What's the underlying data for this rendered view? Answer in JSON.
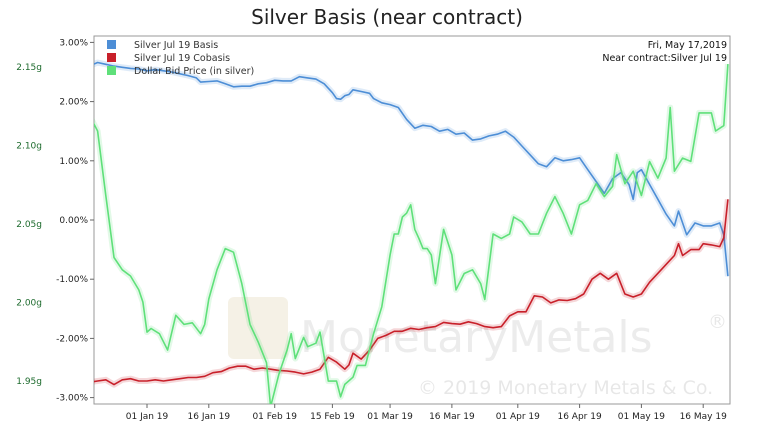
{
  "chart_data": {
    "type": "line",
    "title": "Silver Basis (near contract)",
    "annotation_date": "Fri, May 17,2019",
    "annotation_contract": "Near contract:Silver Jul 19",
    "watermark": "MonetaryMetals",
    "watermark_reg": "®",
    "copyright": "© 2019 Monetary Metals & Co.",
    "legend_position": "top-left",
    "grid": false,
    "x_ticks": [
      "01 Jan 19",
      "16 Jan 19",
      "01 Feb 19",
      "15 Feb 19",
      "01 Mar 19",
      "16 Mar 19",
      "01 Apr 19",
      "16 Apr 19",
      "01 May 19",
      "16 May 19"
    ],
    "y_left": {
      "ticks": [
        "3.00%",
        "2.00%",
        "1.00%",
        "0.00%",
        "-1.00%",
        "-2.00%",
        "-3.00%"
      ],
      "range": [
        -3.0,
        3.0
      ]
    },
    "y_right": {
      "ticks": [
        "2.15g",
        "2.10g",
        "2.05g",
        "2.00g",
        "1.95g"
      ],
      "range": [
        1.9354,
        2.1698
      ]
    },
    "series": [
      {
        "name": "Silver Jul 19 Basis",
        "color": "#4d8ed6",
        "axis": "left",
        "points": [
          [
            -18,
            2.62
          ],
          [
            -17,
            2.55
          ],
          [
            -16,
            2.48
          ],
          [
            -14,
            2.6
          ],
          [
            -12,
            2.66
          ],
          [
            -10,
            2.63
          ],
          [
            -8,
            2.6
          ],
          [
            -6,
            2.58
          ],
          [
            -4,
            2.56
          ],
          [
            -2,
            2.55
          ],
          [
            0,
            2.52
          ],
          [
            2,
            2.54
          ],
          [
            4,
            2.52
          ],
          [
            6,
            2.5
          ],
          [
            8,
            2.47
          ],
          [
            10,
            2.44
          ],
          [
            12,
            2.4
          ],
          [
            13,
            2.33
          ],
          [
            15,
            2.34
          ],
          [
            17,
            2.35
          ],
          [
            19,
            2.3
          ],
          [
            21,
            2.25
          ],
          [
            23,
            2.26
          ],
          [
            25,
            2.26
          ],
          [
            27,
            2.3
          ],
          [
            29,
            2.32
          ],
          [
            31,
            2.36
          ],
          [
            33,
            2.35
          ],
          [
            35,
            2.35
          ],
          [
            37,
            2.42
          ],
          [
            39,
            2.4
          ],
          [
            41,
            2.38
          ],
          [
            43,
            2.3
          ],
          [
            45,
            2.15
          ],
          [
            46,
            2.05
          ],
          [
            47,
            2.04
          ],
          [
            48,
            2.1
          ],
          [
            49,
            2.12
          ],
          [
            50,
            2.2
          ],
          [
            52,
            2.17
          ],
          [
            54,
            2.14
          ],
          [
            55,
            2.05
          ],
          [
            57,
            1.98
          ],
          [
            59,
            1.95
          ],
          [
            61,
            1.9
          ],
          [
            63,
            1.7
          ],
          [
            65,
            1.55
          ],
          [
            67,
            1.6
          ],
          [
            69,
            1.58
          ],
          [
            71,
            1.5
          ],
          [
            73,
            1.53
          ],
          [
            75,
            1.45
          ],
          [
            77,
            1.47
          ],
          [
            79,
            1.35
          ],
          [
            81,
            1.37
          ],
          [
            83,
            1.42
          ],
          [
            85,
            1.45
          ],
          [
            87,
            1.5
          ],
          [
            89,
            1.4
          ],
          [
            91,
            1.25
          ],
          [
            93,
            1.1
          ],
          [
            95,
            0.95
          ],
          [
            97,
            0.9
          ],
          [
            99,
            1.05
          ],
          [
            101,
            1.0
          ],
          [
            103,
            1.02
          ],
          [
            105,
            1.05
          ],
          [
            107,
            0.85
          ],
          [
            109,
            0.65
          ],
          [
            111,
            0.45
          ],
          [
            113,
            0.7
          ],
          [
            115,
            0.8
          ],
          [
            117,
            0.6
          ],
          [
            118,
            0.35
          ],
          [
            119,
            0.8
          ],
          [
            120,
            0.85
          ],
          [
            122,
            0.6
          ],
          [
            124,
            0.35
          ],
          [
            126,
            0.1
          ],
          [
            128,
            -0.1
          ],
          [
            129,
            0.15
          ],
          [
            131,
            -0.25
          ],
          [
            133,
            -0.05
          ],
          [
            135,
            -0.1
          ],
          [
            137,
            -0.1
          ],
          [
            139,
            -0.05
          ],
          [
            140,
            -0.25
          ],
          [
            141,
            -0.95
          ]
        ]
      },
      {
        "name": "Silver Jul 19 Cobasis",
        "color": "#c8202a",
        "axis": "left",
        "points": [
          [
            -18,
            -2.85
          ],
          [
            -17,
            -2.72
          ],
          [
            -16,
            -2.68
          ],
          [
            -14,
            -2.74
          ],
          [
            -12,
            -2.72
          ],
          [
            -10,
            -2.7
          ],
          [
            -8,
            -2.78
          ],
          [
            -6,
            -2.7
          ],
          [
            -4,
            -2.68
          ],
          [
            -2,
            -2.72
          ],
          [
            0,
            -2.72
          ],
          [
            2,
            -2.7
          ],
          [
            4,
            -2.72
          ],
          [
            6,
            -2.7
          ],
          [
            8,
            -2.68
          ],
          [
            10,
            -2.66
          ],
          [
            12,
            -2.66
          ],
          [
            14,
            -2.64
          ],
          [
            16,
            -2.58
          ],
          [
            18,
            -2.56
          ],
          [
            20,
            -2.5
          ],
          [
            22,
            -2.47
          ],
          [
            24,
            -2.47
          ],
          [
            26,
            -2.52
          ],
          [
            28,
            -2.5
          ],
          [
            30,
            -2.52
          ],
          [
            32,
            -2.54
          ],
          [
            34,
            -2.55
          ],
          [
            36,
            -2.57
          ],
          [
            38,
            -2.6
          ],
          [
            40,
            -2.57
          ],
          [
            42,
            -2.52
          ],
          [
            44,
            -2.32
          ],
          [
            46,
            -2.4
          ],
          [
            48,
            -2.52
          ],
          [
            49,
            -2.45
          ],
          [
            50,
            -2.25
          ],
          [
            52,
            -2.35
          ],
          [
            54,
            -2.2
          ],
          [
            56,
            -2.0
          ],
          [
            58,
            -1.95
          ],
          [
            60,
            -1.88
          ],
          [
            62,
            -1.88
          ],
          [
            64,
            -1.83
          ],
          [
            66,
            -1.85
          ],
          [
            68,
            -1.82
          ],
          [
            70,
            -1.8
          ],
          [
            72,
            -1.73
          ],
          [
            74,
            -1.75
          ],
          [
            76,
            -1.76
          ],
          [
            78,
            -1.72
          ],
          [
            80,
            -1.75
          ],
          [
            82,
            -1.8
          ],
          [
            84,
            -1.82
          ],
          [
            86,
            -1.8
          ],
          [
            88,
            -1.62
          ],
          [
            90,
            -1.55
          ],
          [
            92,
            -1.55
          ],
          [
            94,
            -1.28
          ],
          [
            96,
            -1.3
          ],
          [
            98,
            -1.4
          ],
          [
            100,
            -1.35
          ],
          [
            102,
            -1.36
          ],
          [
            104,
            -1.33
          ],
          [
            106,
            -1.25
          ],
          [
            108,
            -1.0
          ],
          [
            110,
            -0.9
          ],
          [
            112,
            -1.0
          ],
          [
            114,
            -0.9
          ],
          [
            116,
            -1.25
          ],
          [
            118,
            -1.3
          ],
          [
            120,
            -1.25
          ],
          [
            122,
            -1.05
          ],
          [
            124,
            -0.9
          ],
          [
            126,
            -0.75
          ],
          [
            128,
            -0.6
          ],
          [
            129,
            -0.4
          ],
          [
            130,
            -0.6
          ],
          [
            132,
            -0.5
          ],
          [
            134,
            -0.5
          ],
          [
            135,
            -0.4
          ],
          [
            137,
            -0.42
          ],
          [
            139,
            -0.45
          ],
          [
            140,
            -0.3
          ],
          [
            141,
            0.35
          ]
        ]
      },
      {
        "name": "Dollar Bid Price (in silver)",
        "color": "#5fe07a",
        "axis": "right",
        "points": [
          [
            -18,
            2.1067
          ],
          [
            -17,
            2.0996
          ],
          [
            -16,
            2.1227
          ],
          [
            -14,
            2.1194
          ],
          [
            -12,
            2.1093
          ],
          [
            -10,
            2.0682
          ],
          [
            -8,
            2.0287
          ],
          [
            -6,
            2.0209
          ],
          [
            -4,
            2.0169
          ],
          [
            -2,
            2.0081
          ],
          [
            -1,
            2.0003
          ],
          [
            0,
            1.9812
          ],
          [
            1,
            1.9835
          ],
          [
            3,
            1.9802
          ],
          [
            5,
            1.9698
          ],
          [
            7,
            1.9919
          ],
          [
            9,
            1.9861
          ],
          [
            11,
            1.9871
          ],
          [
            13,
            1.9802
          ],
          [
            14,
            1.9861
          ],
          [
            15,
            2.0023
          ],
          [
            17,
            2.0209
          ],
          [
            19,
            2.0344
          ],
          [
            21,
            2.0321
          ],
          [
            23,
            2.0121
          ],
          [
            25,
            1.9861
          ],
          [
            27,
            1.9748
          ],
          [
            29,
            1.9617
          ],
          [
            30,
            1.9337
          ],
          [
            32,
            1.9542
          ],
          [
            34,
            1.9698
          ],
          [
            35,
            1.9802
          ],
          [
            36,
            1.9643
          ],
          [
            38,
            1.9778
          ],
          [
            39,
            1.9719
          ],
          [
            41,
            1.9741
          ],
          [
            42,
            1.9812
          ],
          [
            44,
            1.95
          ],
          [
            46,
            1.95
          ],
          [
            47,
            1.94
          ],
          [
            48,
            1.9479
          ],
          [
            50,
            1.9525
          ],
          [
            51,
            1.96
          ],
          [
            53,
            1.96
          ],
          [
            55,
            1.9802
          ],
          [
            57,
            1.9973
          ],
          [
            59,
            2.0304
          ],
          [
            60,
            2.0437
          ],
          [
            61,
            2.0437
          ],
          [
            62,
            2.0545
          ],
          [
            63,
            2.0569
          ],
          [
            64,
            2.0623
          ],
          [
            65,
            2.0466
          ],
          [
            66,
            2.0409
          ],
          [
            67,
            2.0344
          ],
          [
            68,
            2.0344
          ],
          [
            69,
            2.0304
          ],
          [
            70,
            2.0121
          ],
          [
            72,
            2.0466
          ],
          [
            74,
            2.0304
          ],
          [
            75,
            2.0081
          ],
          [
            77,
            2.0185
          ],
          [
            79,
            2.0209
          ],
          [
            81,
            2.0121
          ],
          [
            82,
            2.002
          ],
          [
            84,
            2.0437
          ],
          [
            86,
            2.0409
          ],
          [
            88,
            2.0437
          ],
          [
            89,
            2.0545
          ],
          [
            91,
            2.0514
          ],
          [
            93,
            2.0437
          ],
          [
            95,
            2.0437
          ],
          [
            97,
            2.0569
          ],
          [
            99,
            2.0675
          ],
          [
            101,
            2.0569
          ],
          [
            103,
            2.0437
          ],
          [
            105,
            2.0623
          ],
          [
            107,
            2.0651
          ],
          [
            109,
            2.0757
          ],
          [
            111,
            2.0675
          ],
          [
            113,
            2.074
          ],
          [
            114,
            2.0942
          ],
          [
            116,
            2.0757
          ],
          [
            118,
            2.0837
          ],
          [
            120,
            2.0682
          ],
          [
            122,
            2.0898
          ],
          [
            124,
            2.0793
          ],
          [
            126,
            2.092
          ],
          [
            127,
            2.1242
          ],
          [
            128,
            2.0837
          ],
          [
            130,
            2.092
          ],
          [
            132,
            2.0899
          ],
          [
            134,
            2.1208
          ],
          [
            136,
            2.1208
          ],
          [
            137,
            2.1208
          ],
          [
            138,
            2.1093
          ],
          [
            140,
            2.1127
          ],
          [
            141,
            2.1519
          ]
        ]
      }
    ]
  }
}
